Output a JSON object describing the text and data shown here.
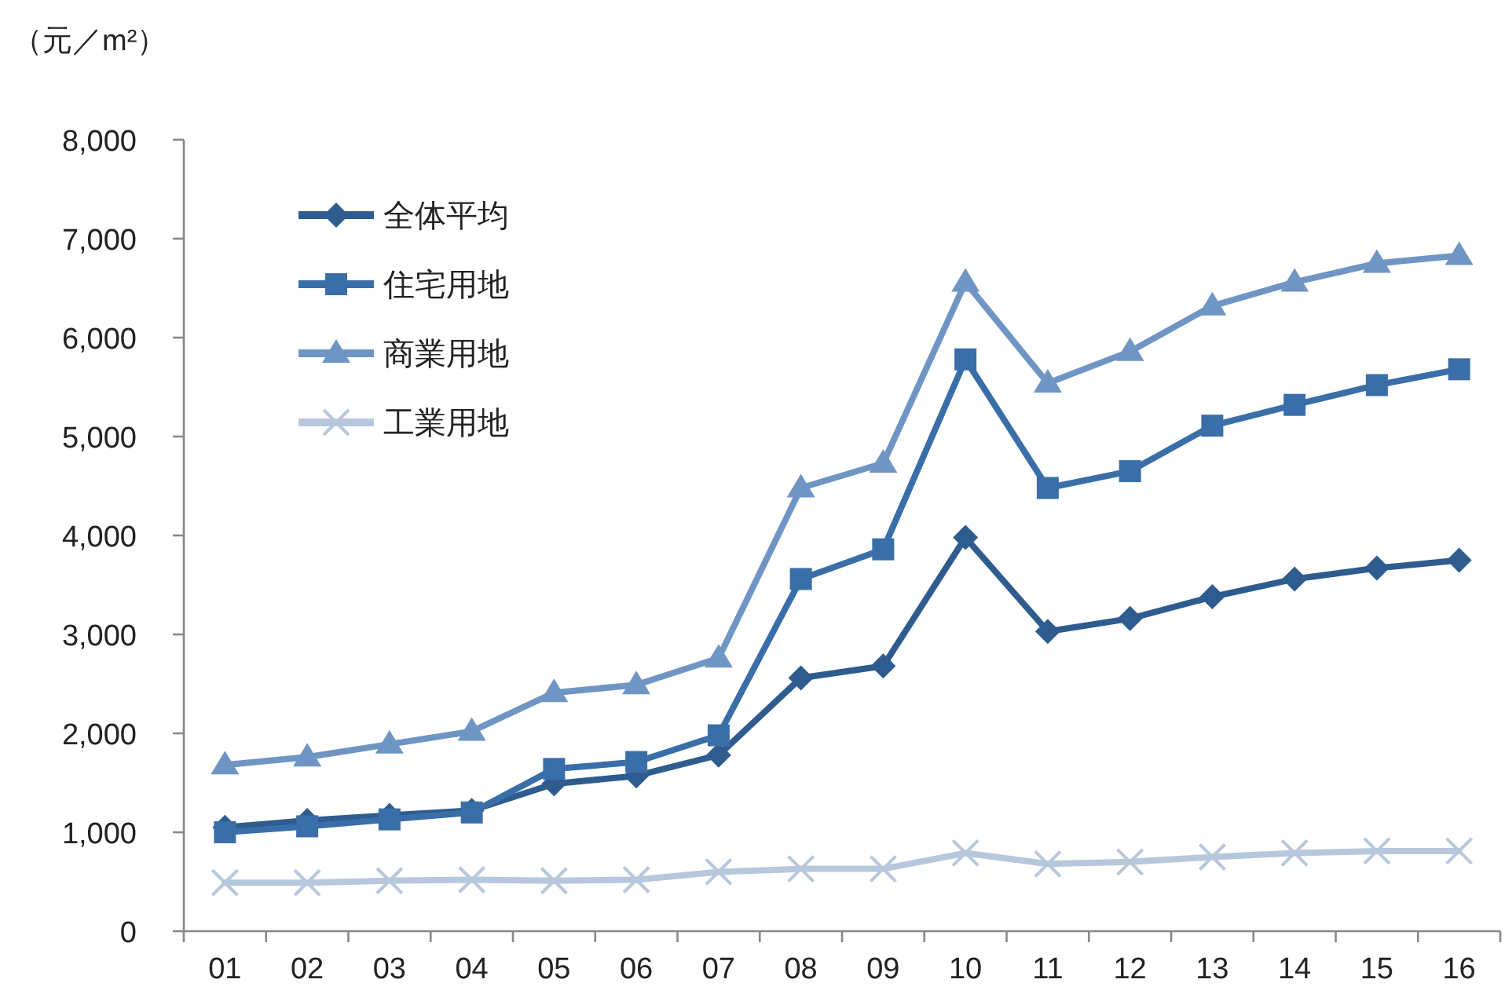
{
  "chart_data": {
    "type": "line",
    "ylabel": "（元／m²）",
    "categories": [
      "01",
      "02",
      "03",
      "04",
      "05",
      "06",
      "07",
      "08",
      "09",
      "10",
      "11",
      "12",
      "13",
      "14",
      "15",
      "16"
    ],
    "series": [
      {
        "name": "全体平均",
        "color": "#2f5c8f",
        "marker": "diamond",
        "values": [
          1050,
          1120,
          1170,
          1220,
          1490,
          1570,
          1780,
          2560,
          2680,
          3980,
          3030,
          3160,
          3380,
          3560,
          3670,
          3750
        ]
      },
      {
        "name": "住宅用地",
        "color": "#3a6ea8",
        "marker": "square",
        "values": [
          1000,
          1060,
          1130,
          1200,
          1640,
          1710,
          1980,
          3560,
          3860,
          5780,
          4480,
          4650,
          5110,
          5320,
          5520,
          5680
        ]
      },
      {
        "name": "商業用地",
        "color": "#6f95c4",
        "marker": "triangle",
        "values": [
          1680,
          1760,
          1890,
          2020,
          2410,
          2490,
          2760,
          4480,
          4730,
          6560,
          5540,
          5860,
          6320,
          6560,
          6750,
          6830
        ]
      },
      {
        "name": "工業用地",
        "color": "#b7c7dc",
        "marker": "cross",
        "values": [
          490,
          490,
          510,
          520,
          510,
          520,
          600,
          630,
          630,
          790,
          680,
          700,
          750,
          790,
          810,
          810
        ]
      }
    ],
    "ylim": [
      0,
      8000
    ],
    "yticks": [
      {
        "value": 0,
        "label": "0"
      },
      {
        "value": 1000,
        "label": "1,000"
      },
      {
        "value": 2000,
        "label": "2,000"
      },
      {
        "value": 3000,
        "label": "3,000"
      },
      {
        "value": 4000,
        "label": "4,000"
      },
      {
        "value": 5000,
        "label": "5,000"
      },
      {
        "value": 6000,
        "label": "6,000"
      },
      {
        "value": 7000,
        "label": "7,000"
      },
      {
        "value": 8000,
        "label": "8,000"
      }
    ],
    "legend": "top left",
    "grid": false
  }
}
